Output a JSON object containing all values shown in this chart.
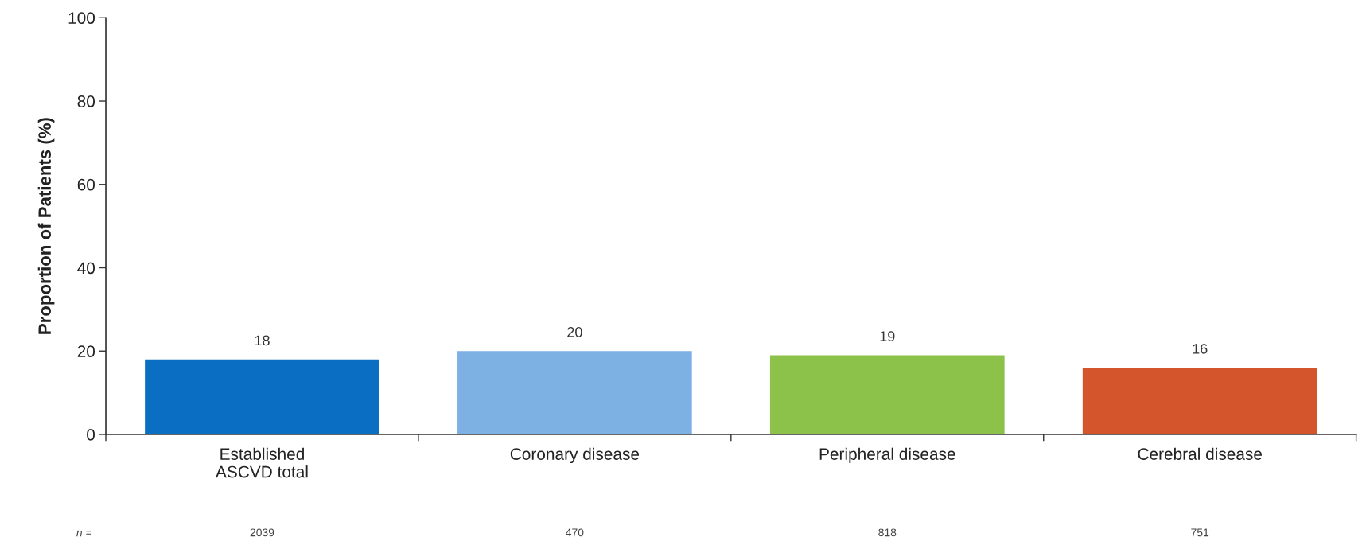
{
  "chart_data": {
    "type": "bar",
    "ylabel": "Proportion of Patients (%)",
    "categories": [
      "Established\nASCVD total",
      "Coronary disease",
      "Peripheral disease",
      "Cerebral disease"
    ],
    "values": [
      18,
      20,
      19,
      16
    ],
    "colors": [
      "#0a6fc2",
      "#7eb1e3",
      "#8cc24a",
      "#d4552b"
    ],
    "ylim": [
      0,
      100
    ],
    "yticks": [
      0,
      20,
      40,
      60,
      80,
      100
    ],
    "grid": false,
    "legend": false,
    "data_labels": true,
    "annotations": [
      "n =",
      "2039",
      "470",
      "818",
      "751"
    ]
  }
}
